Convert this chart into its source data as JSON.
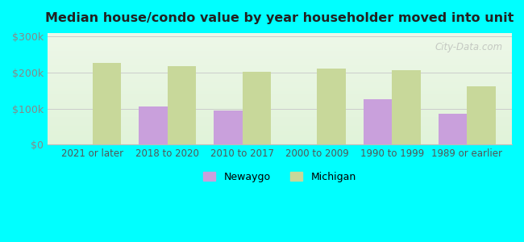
{
  "title": "Median house/condo value by year householder moved into unit",
  "categories": [
    "2021 or later",
    "2018 to 2020",
    "2010 to 2017",
    "2000 to 2009",
    "1990 to 1999",
    "1989 or earlier"
  ],
  "newaygo_values": [
    null,
    107000,
    95000,
    null,
    127000,
    85000
  ],
  "michigan_values": [
    228000,
    218000,
    203000,
    212000,
    207000,
    163000
  ],
  "newaygo_color": "#c9a0dc",
  "michigan_color": "#c8d89a",
  "background_outer": "#00ffff",
  "ylabel_color": "#888888",
  "xlabel_color": "#555555",
  "title_color": "#222222",
  "yticks": [
    0,
    100000,
    200000,
    300000
  ],
  "ytick_labels": [
    "$0",
    "$100k",
    "$200k",
    "$300k"
  ],
  "ylim": [
    0,
    310000
  ],
  "bar_width": 0.38,
  "legend_newaygo": "Newaygo",
  "legend_michigan": "Michigan",
  "watermark": "City-Data.com"
}
